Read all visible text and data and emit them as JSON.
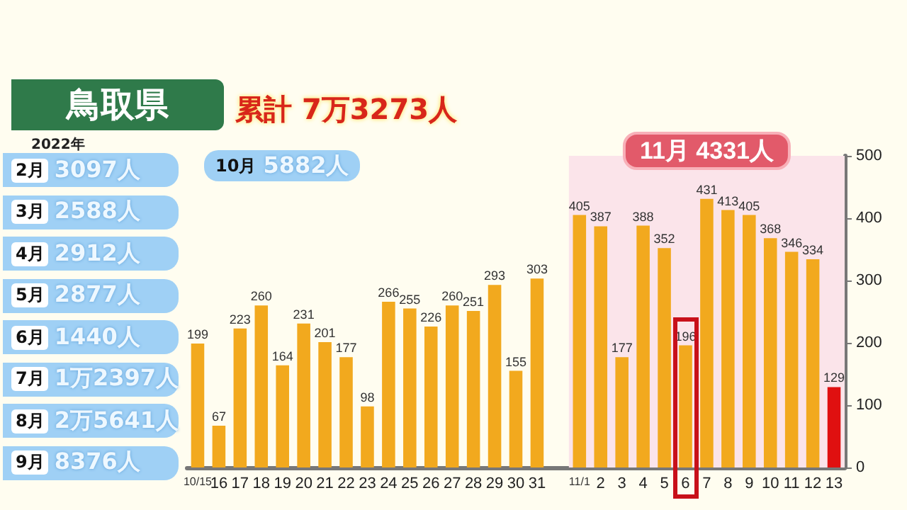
{
  "chart_data": {
    "type": "bar",
    "title": "鳥取県",
    "subtitle": "累計 7万3273人",
    "annotations": [
      "2022年",
      "2月 3097人",
      "3月 2588人",
      "4月 2912人",
      "5月 2877人",
      "6月 1440人",
      "7月 1万2397人",
      "8月 2万5641人",
      "9月 8376人",
      "10月 5882人"
    ],
    "categories": [
      "10/15",
      "16",
      "17",
      "18",
      "19",
      "20",
      "21",
      "22",
      "23",
      "24",
      "25",
      "26",
      "27",
      "28",
      "29",
      "30",
      "31",
      null,
      "11/1",
      "2",
      "3",
      "4",
      "5",
      "6",
      "7",
      "8",
      "9",
      "10",
      "11",
      "12",
      "13"
    ],
    "values": [
      199,
      67,
      223,
      260,
      164,
      231,
      201,
      177,
      98,
      266,
      255,
      226,
      260,
      251,
      293,
      155,
      303,
      null,
      405,
      387,
      177,
      388,
      352,
      196,
      431,
      413,
      405,
      368,
      346,
      334,
      129
    ],
    "colors": [
      "#f2a91e",
      "#f2a91e",
      "#f2a91e",
      "#f2a91e",
      "#f2a91e",
      "#f2a91e",
      "#f2a91e",
      "#f2a91e",
      "#f2a91e",
      "#f2a91e",
      "#f2a91e",
      "#f2a91e",
      "#f2a91e",
      "#f2a91e",
      "#f2a91e",
      "#f2a91e",
      "#f2a91e",
      "#f2a91e",
      "#f2a91e",
      "#f2a91e",
      "#f2a91e",
      "#f2a91e",
      "#f2a91e",
      "#f2a91e",
      "#f2a91e",
      "#f2a91e",
      "#f2a91e",
      "#f2a91e",
      "#f2a91e",
      "#f2a91e",
      "#e01010"
    ],
    "ylim": [
      0,
      500
    ],
    "yticks": [
      0,
      100,
      200,
      300,
      400,
      500
    ],
    "bands": [
      {
        "axis": "x",
        "from": "11/1",
        "to": "13",
        "label": "11月 4331人",
        "color": "#fbe4ea"
      }
    ],
    "data_labels": true
  }
}
